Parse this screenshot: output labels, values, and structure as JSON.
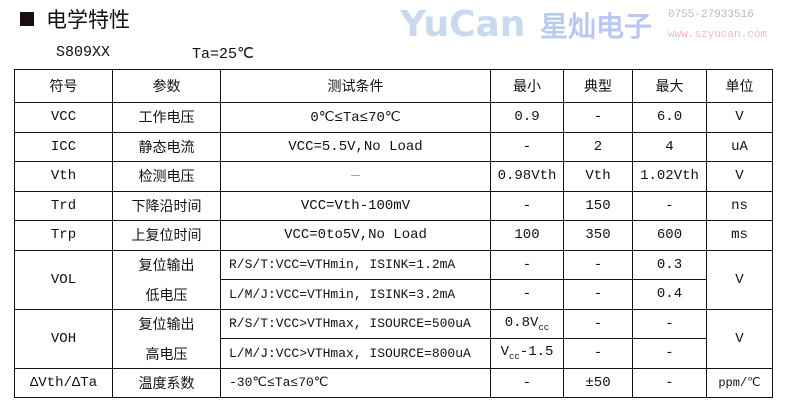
{
  "section": {
    "title": "电学特性"
  },
  "meta": {
    "model": "S809XX",
    "condition": "Ta=25℃"
  },
  "table": {
    "headers": [
      "符号",
      "参数",
      "测试条件",
      "最小",
      "典型",
      "最大",
      "单位"
    ],
    "rows": [
      {
        "symbol": "VCC",
        "param": "工作电压",
        "cond": "0℃≤Ta≤70℃",
        "min": "0.9",
        "typ": "-",
        "max": "6.0",
        "unit": "V"
      },
      {
        "symbol": "ICC",
        "param": "静态电流",
        "cond": "VCC=5.5V,No Load",
        "min": "-",
        "typ": "2",
        "max": "4",
        "unit": "uA"
      },
      {
        "symbol": "Vth",
        "param": "检测电压",
        "cond": "—",
        "min": "0.98Vth",
        "typ": "Vth",
        "max": "1.02Vth",
        "unit": "V"
      },
      {
        "symbol": "Trd",
        "param": "下降沿时间",
        "cond": "VCC=Vth-100mV",
        "min": "-",
        "typ": "150",
        "max": "-",
        "unit": "ns"
      },
      {
        "symbol": "Trp",
        "param": "上复位时间",
        "cond": "VCC=0to5V,No Load",
        "min": "100",
        "typ": "350",
        "max": "600",
        "unit": "ms"
      }
    ],
    "vol": {
      "symbol": "VOL",
      "param1": "复位输出",
      "param2": "低电压",
      "unit": "V",
      "sub": [
        {
          "cond": "R/S/T:VCC=VTHmin, ISINK=1.2mA",
          "min": "-",
          "typ": "-",
          "max": "0.3"
        },
        {
          "cond": "L/M/J:VCC=VTHmin, ISINK=3.2mA",
          "min": "-",
          "typ": "-",
          "max": "0.4"
        }
      ]
    },
    "voh": {
      "symbol": "VOH",
      "param1": "复位输出",
      "param2": "高电压",
      "unit": "V",
      "sub": [
        {
          "cond": "R/S/T:VCC>VTHmax, ISOURCE=500uA",
          "min_a": "0.8V",
          "min_sub": "cc",
          "min_b": "",
          "typ": "-",
          "max": "-"
        },
        {
          "cond": "L/M/J:VCC>VTHmax, ISOURCE=800uA",
          "min_a": "V",
          "min_sub": "cc",
          "min_b": "-1.5",
          "typ": "-",
          "max": "-"
        }
      ]
    },
    "temp": {
      "symbol": "ΔVth/ΔTa",
      "param": "温度系数",
      "cond": "-30℃≤Ta≤70℃",
      "min": "-",
      "typ": "±50",
      "max": "-",
      "unit": "ppm/℃"
    }
  },
  "watermark": {
    "logo": "YuCan",
    "name": "星灿电子",
    "phone": "0755-27933516",
    "site": "www.szyucan.com"
  }
}
